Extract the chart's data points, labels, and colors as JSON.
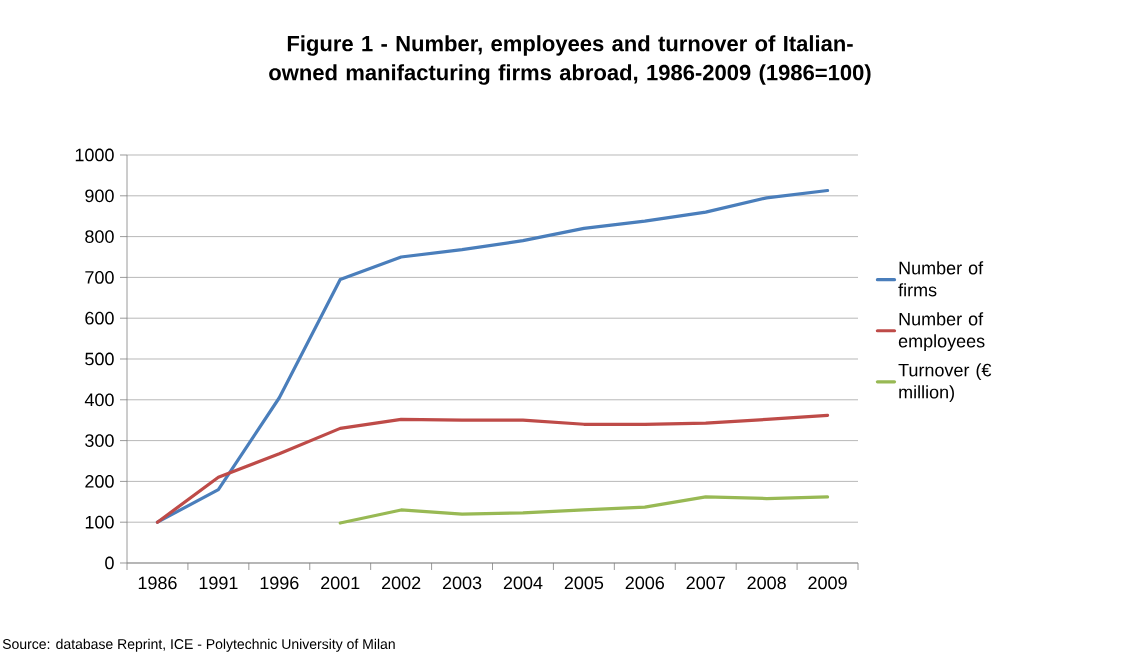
{
  "chart_data": {
    "type": "line",
    "title": "Figure 1 - Number, employees and turnover of Italian-owned manifacturing firms abroad, 1986-2009 (1986=100)",
    "categories": [
      "1986",
      "1991",
      "1996",
      "2001",
      "2002",
      "2003",
      "2004",
      "2005",
      "2006",
      "2007",
      "2008",
      "2009"
    ],
    "series": [
      {
        "name": "Number of firms",
        "color": "#4a7ebb",
        "values": [
          100,
          180,
          405,
          695,
          750,
          768,
          790,
          820,
          838,
          860,
          895,
          913
        ]
      },
      {
        "name": "Number of employees",
        "color": "#be4b48",
        "values": [
          100,
          210,
          268,
          330,
          352,
          350,
          350,
          340,
          340,
          343,
          352,
          362
        ]
      },
      {
        "name": "Turnover (€ million)",
        "color": "#98b954",
        "values": [
          null,
          null,
          null,
          98,
          130,
          120,
          123,
          130,
          137,
          162,
          158,
          162
        ]
      }
    ],
    "ylim": [
      0,
      1000
    ],
    "yticks": [
      0,
      100,
      200,
      300,
      400,
      500,
      600,
      700,
      800,
      900,
      1000
    ],
    "grid": "y",
    "legend": "right",
    "marker": "none",
    "line_style": "solid",
    "annotations": [
      "Source: database Reprint, ICE - Polytechnic University of Milan"
    ]
  }
}
